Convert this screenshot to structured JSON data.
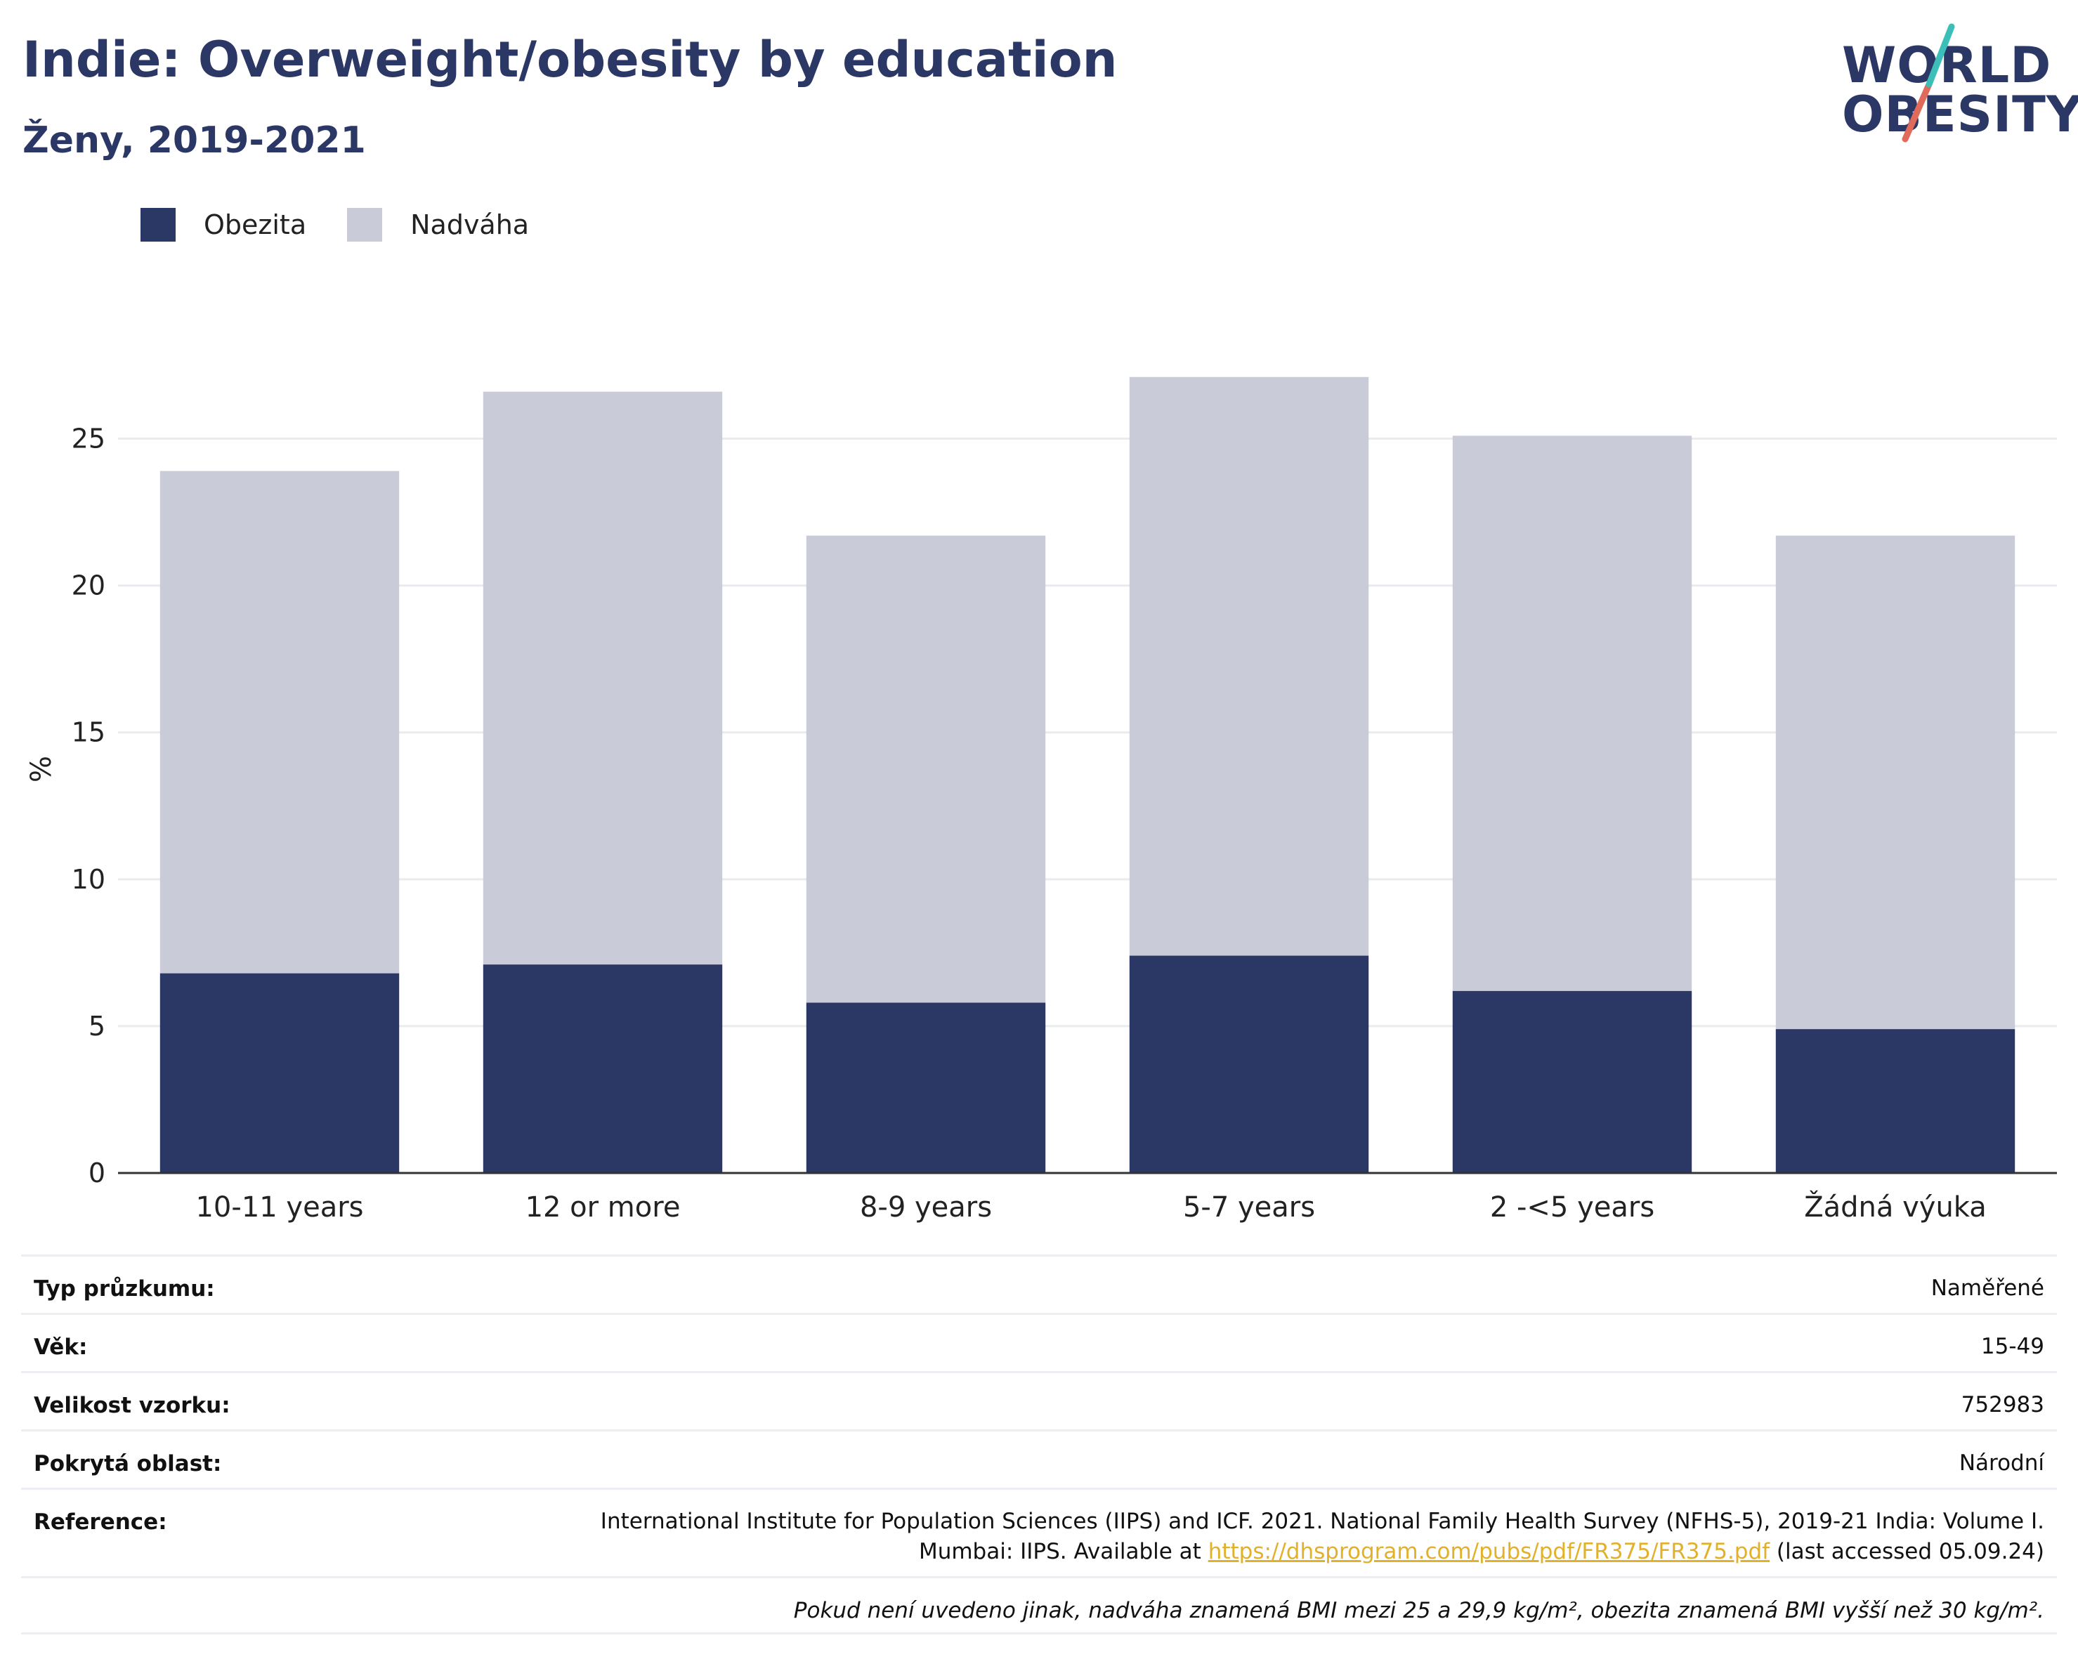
{
  "header": {
    "title": "Indie: Overweight/obesity by education",
    "subtitle": "Ženy, 2019-2021"
  },
  "logo": {
    "line1": "WORLD",
    "line2": "OBESITY"
  },
  "colors": {
    "obesity": "#2b3764",
    "overweight": "#c9ccd8",
    "logo_teal": "#3cbfb8",
    "logo_coral": "#e16a5a",
    "link": "#e1b12c"
  },
  "chart_data": {
    "type": "bar",
    "stacked": true,
    "categories": [
      "10-11 years",
      "12 or more",
      "8-9 years",
      "5-7 years",
      "2 -<5 years",
      "Žádná výuka"
    ],
    "series": [
      {
        "name": "Obezita",
        "values": [
          6.8,
          7.1,
          5.8,
          7.4,
          6.2,
          4.9
        ]
      },
      {
        "name": "Nadváha",
        "values": [
          17.1,
          19.5,
          15.9,
          19.7,
          18.9,
          16.8
        ]
      }
    ],
    "ylabel": "%",
    "ylim": [
      0,
      27.5
    ],
    "yticks": [
      0,
      5,
      10,
      15,
      20,
      25
    ],
    "grid": true,
    "legend": "top-left"
  },
  "info": {
    "rows": [
      {
        "key": "Typ průzkumu:",
        "value": "Naměřené"
      },
      {
        "key": "Věk:",
        "value": "15-49"
      },
      {
        "key": "Velikost vzorku:",
        "value": "752983"
      },
      {
        "key": "Pokrytá oblast:",
        "value": "Národní"
      }
    ],
    "reference": {
      "key": "Reference:",
      "line1": "International Institute for Population Sciences (IIPS) and ICF. 2021. National Family Health Survey (NFHS-5), 2019-21 India: Volume I.",
      "line2_prefix": "Mumbai: IIPS. Available at ",
      "link": "https://dhsprogram.com/pubs/pdf/FR375/FR375.pdf",
      "line2_suffix": " (last accessed 05.09.24)"
    },
    "note": "Pokud není uvedeno jinak, nadváha znamená BMI mezi 25 a 29,9 kg/m², obezita znamená BMI vyšší než 30 kg/m²."
  }
}
